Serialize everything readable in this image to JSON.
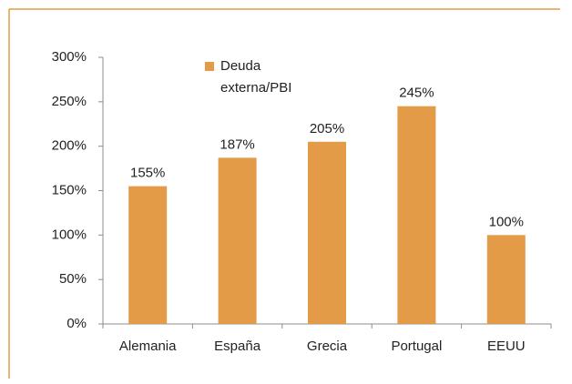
{
  "chart_data": {
    "type": "bar",
    "categories": [
      "Alemania",
      "España",
      "Grecia",
      "Portugal",
      "EEUU"
    ],
    "series": [
      {
        "name": "Deuda externa/PBI",
        "color": "#e39b48",
        "values": [
          155,
          187,
          205,
          245,
          100
        ],
        "value_labels": [
          "155%",
          "187%",
          "205%",
          "245%",
          "100%"
        ]
      }
    ],
    "ylim": [
      0,
      300
    ],
    "yticks": [
      {
        "value": 0,
        "label": "0%"
      },
      {
        "value": 50,
        "label": "50%"
      },
      {
        "value": 100,
        "label": "100%"
      },
      {
        "value": 150,
        "label": "150%"
      },
      {
        "value": 200,
        "label": "200%"
      },
      {
        "value": 250,
        "label": "250%"
      },
      {
        "value": 300,
        "label": "300%"
      }
    ],
    "legend": "top-left",
    "grid": false
  }
}
